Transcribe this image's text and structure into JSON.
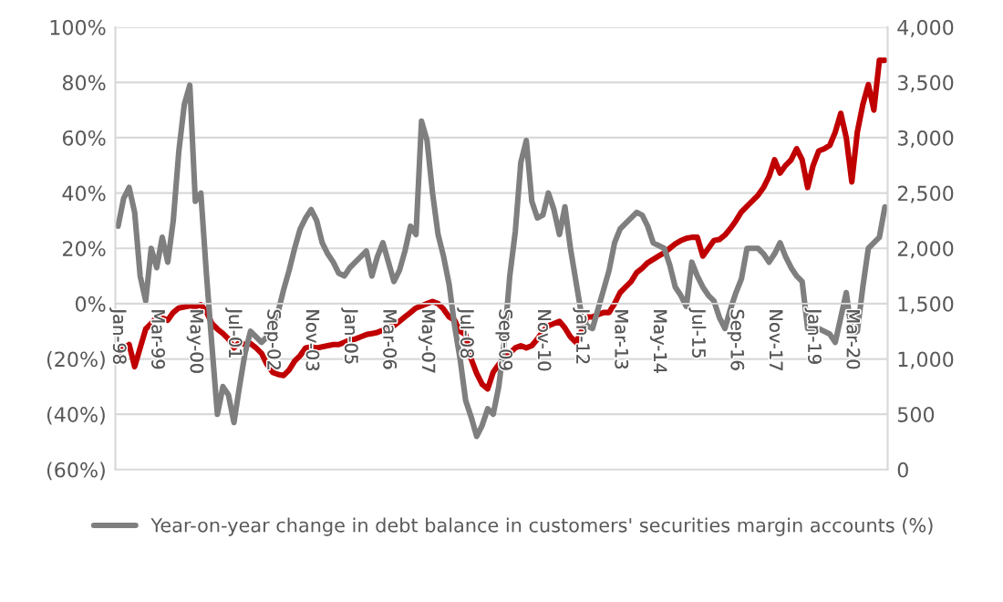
{
  "chart_data": {
    "type": "line",
    "categories": [
      "Jan-98",
      null,
      null,
      null,
      null,
      null,
      null,
      "Mar-99",
      null,
      null,
      null,
      null,
      null,
      null,
      "May-00",
      null,
      null,
      null,
      null,
      null,
      null,
      "Jul-01",
      null,
      null,
      null,
      null,
      null,
      null,
      "Sep-02",
      null,
      null,
      null,
      null,
      null,
      null,
      "Nov-03",
      null,
      null,
      null,
      null,
      null,
      null,
      "Jan-05",
      null,
      null,
      null,
      null,
      null,
      null,
      "Mar-06",
      null,
      null,
      null,
      null,
      null,
      null,
      "May-07",
      null,
      null,
      null,
      null,
      null,
      null,
      "Jul-08",
      null,
      null,
      null,
      null,
      null,
      null,
      "Sep-09",
      null,
      null,
      null,
      null,
      null,
      null,
      "Nov-10",
      null,
      null,
      null,
      null,
      null,
      null,
      "Jan-12",
      null,
      null,
      null,
      null,
      null,
      null,
      "Mar-13",
      null,
      null,
      null,
      null,
      null,
      null,
      "May-14",
      null,
      null,
      null,
      null,
      null,
      null,
      "Jul-15",
      null,
      null,
      null,
      null,
      null,
      null,
      "Sep-16",
      null,
      null,
      null,
      null,
      null,
      null,
      "Nov-17",
      null,
      null,
      null,
      null,
      null,
      null,
      "Jan-19",
      null,
      null,
      null,
      null,
      null,
      null,
      "Mar-20",
      null,
      null,
      null,
      null,
      null,
      null
    ],
    "series": [
      {
        "name": "Year-on-year change in debt balance in customers' securities margin accounts (%)",
        "color": "#7f7f7f",
        "values": [
          28,
          38,
          42,
          33,
          10,
          1,
          20,
          13,
          24,
          15,
          30,
          55,
          72,
          79,
          37,
          40,
          11,
          -15,
          -40,
          -30,
          -33,
          -43,
          -30,
          -18,
          -10,
          -12,
          -14,
          -12,
          -8,
          -3,
          5,
          12,
          20,
          27,
          31,
          34,
          30,
          22,
          18,
          15,
          11,
          10,
          13,
          15,
          17,
          19,
          10,
          17,
          22,
          15,
          8,
          12,
          19,
          28,
          25,
          66,
          59,
          40,
          25,
          17,
          7,
          -8,
          -20,
          -35,
          -41,
          -48,
          -44,
          -38,
          -40,
          -30,
          -14,
          10,
          26,
          51,
          59,
          37,
          31,
          32,
          40,
          34,
          25,
          35,
          20,
          8,
          -4,
          -8,
          -9,
          -2,
          5,
          12,
          22,
          27,
          29,
          31,
          33,
          32,
          28,
          22,
          21,
          20,
          14,
          6,
          3,
          -1,
          15,
          10,
          6,
          3,
          1,
          -5,
          -9,
          -2,
          4,
          9,
          20,
          20,
          20,
          18,
          15,
          18,
          22,
          17,
          13,
          10,
          8,
          -9,
          -9,
          -9,
          -10,
          -11,
          -14,
          -5,
          4,
          -11,
          -10,
          6,
          20,
          22,
          24,
          35
        ]
      },
      {
        "color": "#c00000",
        "axis": "y2",
        "values": [
          1050,
          1100,
          1130,
          930,
          1100,
          1270,
          1320,
          1380,
          1370,
          1350,
          1420,
          1460,
          1470,
          1480,
          1470,
          1490,
          1430,
          1320,
          1270,
          1230,
          1180,
          1100,
          1150,
          1130,
          1140,
          1100,
          1050,
          950,
          880,
          860,
          850,
          900,
          980,
          1030,
          1100,
          1110,
          1100,
          1110,
          1120,
          1130,
          1130,
          1150,
          1170,
          1180,
          1200,
          1220,
          1230,
          1240,
          1260,
          1280,
          1300,
          1340,
          1380,
          1420,
          1460,
          1480,
          1500,
          1520,
          1500,
          1450,
          1380,
          1350,
          1250,
          1220,
          1000,
          870,
          770,
          730,
          880,
          950,
          1000,
          1050,
          1100,
          1120,
          1100,
          1120,
          1180,
          1250,
          1300,
          1320,
          1340,
          1280,
          1200,
          1150,
          1250,
          1380,
          1380,
          1400,
          1420,
          1420,
          1500,
          1600,
          1650,
          1700,
          1780,
          1820,
          1870,
          1900,
          1930,
          1960,
          2000,
          2040,
          2070,
          2090,
          2100,
          2100,
          1930,
          2000,
          2070,
          2080,
          2120,
          2180,
          2250,
          2330,
          2380,
          2430,
          2480,
          2550,
          2650,
          2800,
          2680,
          2750,
          2800,
          2900,
          2800,
          2550,
          2750,
          2880,
          2900,
          2930,
          3050,
          3220,
          3000,
          2600,
          3050,
          3300,
          3480,
          3250,
          3700,
          3700
        ]
      }
    ],
    "ylim": [
      -60,
      100
    ],
    "yticks": [
      {
        "value": -60,
        "label": "(60%)"
      },
      {
        "value": -40,
        "label": "(40%)"
      },
      {
        "value": -20,
        "label": "(20%)"
      },
      {
        "value": 0,
        "label": "0%"
      },
      {
        "value": 20,
        "label": "20%"
      },
      {
        "value": 40,
        "label": "40%"
      },
      {
        "value": 60,
        "label": "60%"
      },
      {
        "value": 80,
        "label": "80%"
      },
      {
        "value": 100,
        "label": "100%"
      }
    ],
    "y2lim": [
      0,
      4000
    ],
    "y2ticks": [
      0,
      500,
      {
        "value": 1000,
        "label": "1,000"
      },
      {
        "value": 1500,
        "label": "1,500"
      },
      {
        "value": 2000,
        "label": "2,000"
      },
      {
        "value": 2500,
        "label": "2,500"
      },
      {
        "value": 3000,
        "label": "3,000"
      },
      {
        "value": 3500,
        "label": "3,500"
      },
      {
        "value": 4000,
        "label": "4,000"
      }
    ],
    "grid": "y",
    "legend": "bottom",
    "marker": "none",
    "line_style": "solid"
  }
}
